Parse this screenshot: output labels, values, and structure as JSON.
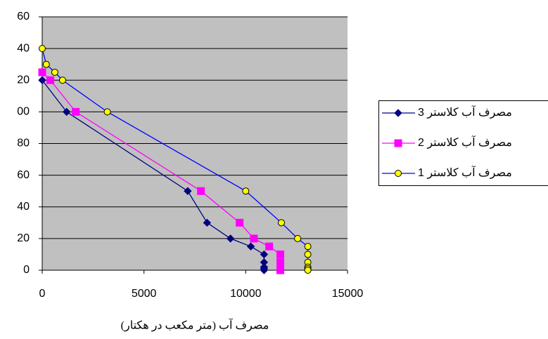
{
  "chart_data": {
    "type": "line",
    "x_label": "مصرف آب (متر مکعب در هکتار)",
    "xlim": [
      0,
      15000
    ],
    "xticks": [
      0,
      5000,
      10000,
      15000
    ],
    "ylim": [
      0,
      160
    ],
    "yticks": [
      0,
      20,
      40,
      60,
      80,
      {
        "value": 100,
        "label": "00"
      },
      {
        "value": 120,
        "label": "20"
      },
      {
        "value": 140,
        "label": "40"
      },
      {
        "value": 160,
        "label": "60"
      }
    ],
    "grid": true,
    "plot_background": "#c0c0c0",
    "series": [
      {
        "name": "مصرف آب کلاستر 3",
        "color": "#000080",
        "marker": "diamond",
        "marker_fill": "#000080",
        "x": [
          0,
          1200,
          7150,
          8100,
          9250,
          10250,
          10900,
          10900,
          10900,
          10900,
          10900
        ],
        "values": [
          120,
          100,
          50,
          30,
          20,
          15,
          10,
          5,
          2,
          1,
          0
        ]
      },
      {
        "name": "مصرف آب کلاستر 2",
        "color": "#ff00ff",
        "marker": "square",
        "marker_fill": "#ff00ff",
        "x": [
          0,
          400,
          1650,
          7800,
          9700,
          10400,
          11150,
          11700,
          11700,
          11700,
          11700
        ],
        "values": [
          125,
          120,
          100,
          50,
          30,
          20,
          15,
          10,
          5,
          2,
          0
        ]
      },
      {
        "name": "مصرف آب کلاستر 1",
        "color": "#0000ff",
        "marker": "circle",
        "marker_fill": "#ffff00",
        "x": [
          0,
          200,
          620,
          1000,
          3200,
          10000,
          11750,
          12550,
          13050,
          13050,
          13050,
          13050,
          13050,
          13050
        ],
        "values": [
          140,
          130,
          125,
          120,
          100,
          50,
          30,
          20,
          15,
          10,
          5,
          2,
          1,
          0
        ]
      }
    ]
  }
}
